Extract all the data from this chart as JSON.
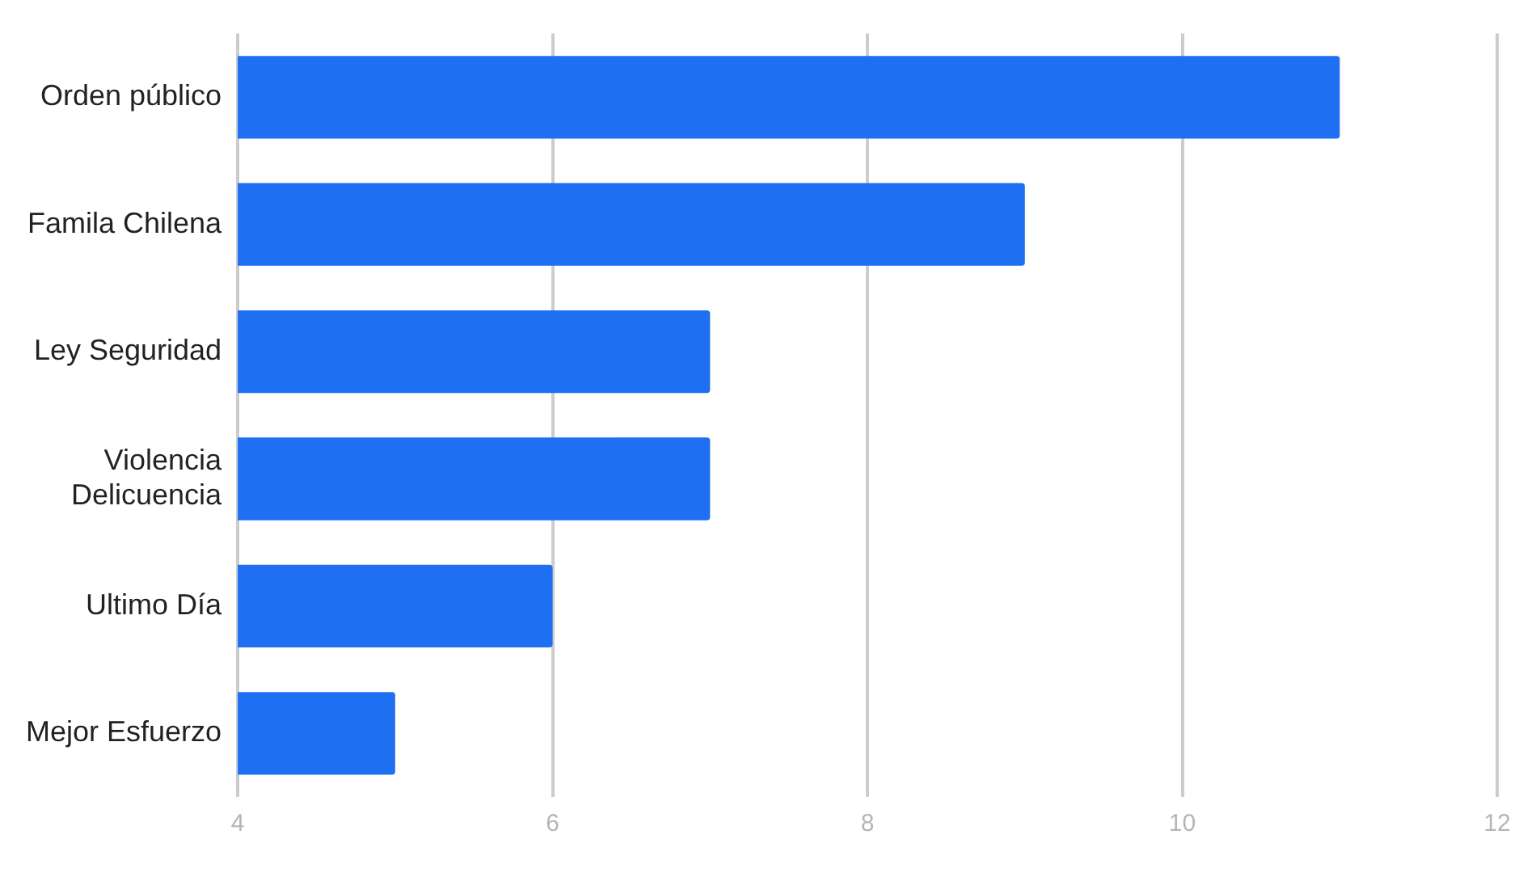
{
  "chart_data": {
    "type": "bar",
    "orientation": "horizontal",
    "categories": [
      "Orden público",
      "Famila Chilena",
      "Ley Seguridad",
      "Violencia Delicuencia",
      "Ultimo Día",
      "Mejor Esfuerzo"
    ],
    "values": [
      11,
      9,
      7,
      7,
      6,
      5
    ],
    "color": "#1f6ff2",
    "xlim": [
      4,
      12
    ],
    "xticks": [
      4,
      6,
      8,
      10,
      12
    ],
    "grid": "x",
    "legend": false
  }
}
